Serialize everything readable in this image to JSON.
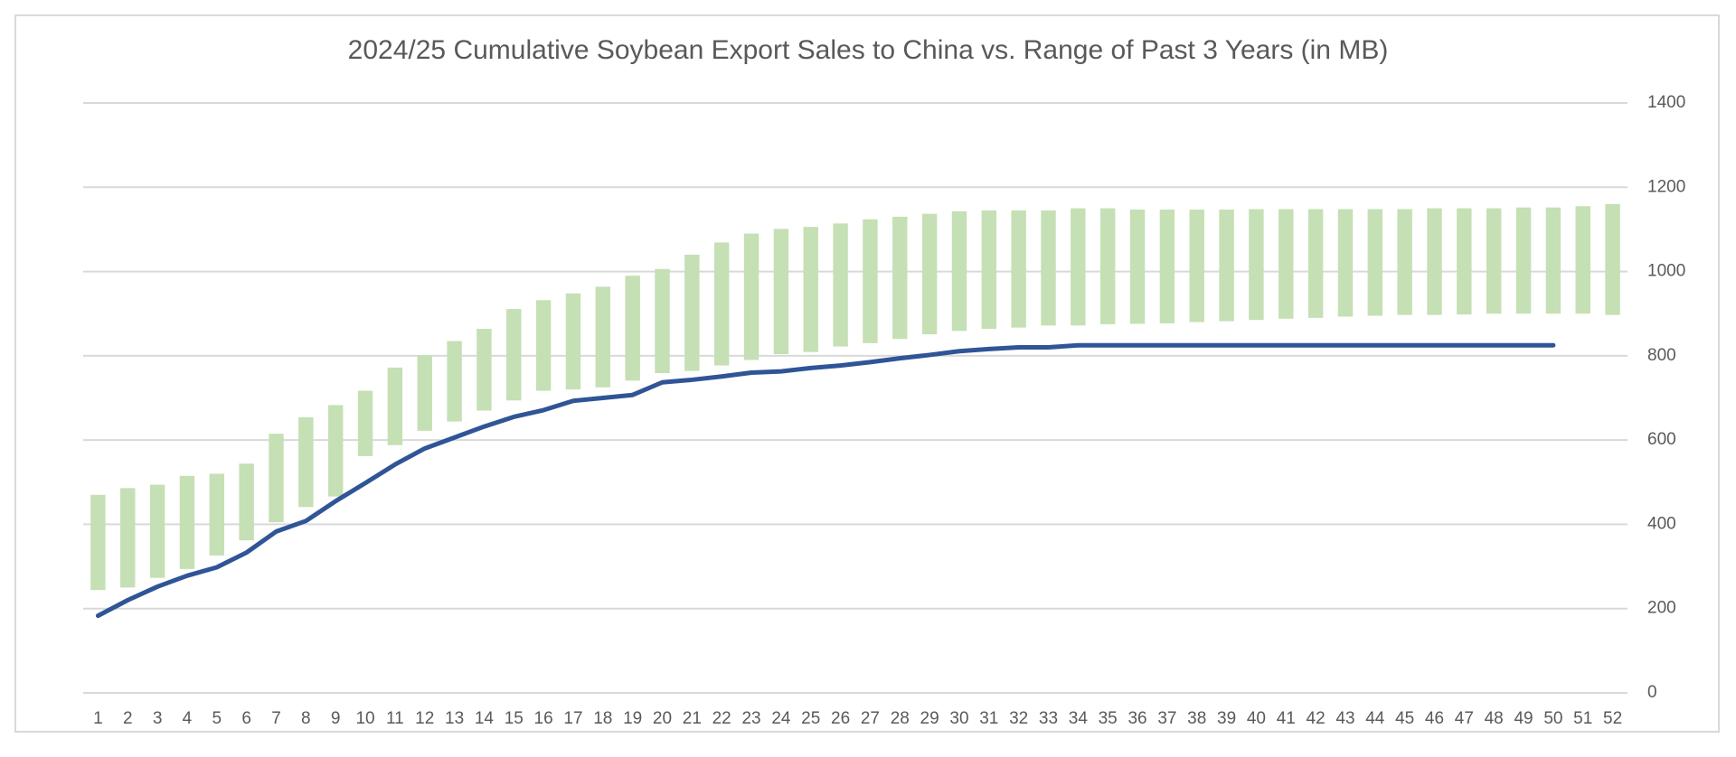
{
  "chart_data": {
    "type": "range-bar-line",
    "title": "2024/25 Cumulative Soybean Export Sales to China vs. Range of Past 3 Years (in MB)",
    "categories": [
      1,
      2,
      3,
      4,
      5,
      6,
      7,
      8,
      9,
      10,
      11,
      12,
      13,
      14,
      15,
      16,
      17,
      18,
      19,
      20,
      21,
      22,
      23,
      24,
      25,
      26,
      27,
      28,
      29,
      30,
      31,
      32,
      33,
      34,
      35,
      36,
      37,
      38,
      39,
      40,
      41,
      42,
      43,
      44,
      45,
      46,
      47,
      48,
      49,
      50,
      51,
      52
    ],
    "range": {
      "color": "#c5e0b4",
      "low": [
        244,
        250,
        273,
        294,
        326,
        362,
        405,
        441,
        466,
        562,
        588,
        622,
        644,
        670,
        694,
        717,
        720,
        725,
        741,
        759,
        764,
        777,
        790,
        804,
        809,
        822,
        830,
        840,
        851,
        859,
        864,
        867,
        872,
        872,
        875,
        876,
        877,
        880,
        882,
        885,
        888,
        890,
        893,
        895,
        897,
        897,
        898,
        900,
        900,
        900,
        900,
        897
      ],
      "high": [
        470,
        486,
        494,
        515,
        520,
        544,
        615,
        654,
        683,
        717,
        772,
        801,
        835,
        864,
        911,
        932,
        948,
        964,
        990,
        1006,
        1040,
        1069,
        1090,
        1101,
        1106,
        1114,
        1124,
        1130,
        1137,
        1143,
        1145,
        1145,
        1145,
        1150,
        1150,
        1147,
        1147,
        1147,
        1147,
        1148,
        1148,
        1148,
        1148,
        1148,
        1148,
        1150,
        1150,
        1150,
        1152,
        1152,
        1155,
        1160
      ]
    },
    "line": {
      "color": "#2f5597",
      "values": [
        183,
        220,
        252,
        278,
        298,
        333,
        383,
        408,
        455,
        498,
        542,
        580,
        606,
        632,
        655,
        671,
        693,
        700,
        707,
        737,
        743,
        751,
        760,
        763,
        771,
        777,
        785,
        794,
        802,
        811,
        816,
        820,
        820,
        825,
        825,
        825,
        825,
        825,
        825,
        825,
        825,
        825,
        825,
        825,
        825,
        825,
        825,
        825,
        825,
        825,
        null,
        null
      ]
    },
    "ylim": [
      0,
      1400
    ],
    "yticks": [
      0,
      200,
      400,
      600,
      800,
      1000,
      1200,
      1400
    ],
    "grid": true
  }
}
